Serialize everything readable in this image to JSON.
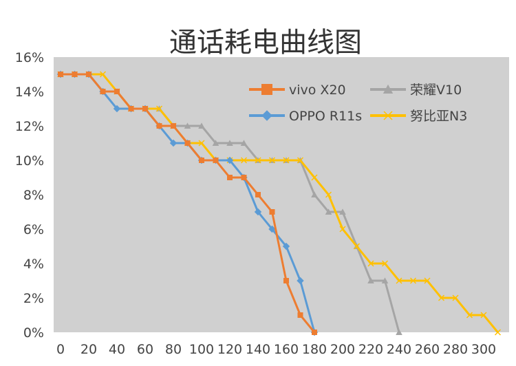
{
  "chart_data": {
    "type": "line",
    "title": "通话耗电曲线图",
    "xlabel": "",
    "ylabel": "",
    "xlim": [
      0,
      310
    ],
    "ylim": [
      0,
      16
    ],
    "x_ticks": [
      "0",
      "20",
      "40",
      "60",
      "80",
      "100",
      "120",
      "140",
      "160",
      "180",
      "200",
      "220",
      "240",
      "260",
      "280",
      "300"
    ],
    "y_ticks": [
      "0%",
      "2%",
      "4%",
      "6%",
      "8%",
      "10%",
      "12%",
      "14%",
      "16%"
    ],
    "grid": false,
    "legend_position": "top-right",
    "plot_background": "#d0d0d0",
    "series": [
      {
        "name": "vivo X20",
        "color": "#ed7d31",
        "marker": "square",
        "x": [
          0,
          10,
          20,
          30,
          40,
          50,
          60,
          70,
          80,
          90,
          100,
          110,
          120,
          130,
          140,
          150,
          160,
          170,
          180
        ],
        "y": [
          15,
          15,
          15,
          14,
          14,
          13,
          13,
          12,
          12,
          11,
          10,
          10,
          9,
          9,
          8,
          7,
          3,
          1,
          0
        ]
      },
      {
        "name": "荣耀V10",
        "color": "#a5a5a5",
        "marker": "triangle",
        "x": [
          0,
          10,
          20,
          30,
          40,
          50,
          60,
          70,
          80,
          90,
          100,
          110,
          120,
          130,
          140,
          150,
          160,
          170,
          180,
          190,
          200,
          210,
          220,
          230,
          240
        ],
        "y": [
          15,
          15,
          15,
          14,
          14,
          13,
          13,
          13,
          12,
          12,
          12,
          11,
          11,
          11,
          10,
          10,
          10,
          10,
          8,
          7,
          7,
          5,
          3,
          3,
          0
        ]
      },
      {
        "name": "OPPO R11s",
        "color": "#5b9bd5",
        "marker": "diamond",
        "x": [
          0,
          10,
          20,
          30,
          40,
          50,
          60,
          70,
          80,
          90,
          100,
          110,
          120,
          130,
          140,
          150,
          160,
          170,
          180
        ],
        "y": [
          15,
          15,
          15,
          14,
          13,
          13,
          13,
          12,
          11,
          11,
          10,
          10,
          10,
          9,
          7,
          6,
          5,
          3,
          0
        ]
      },
      {
        "name": "努比亚N3",
        "color": "#ffc000",
        "marker": "x",
        "x": [
          0,
          10,
          20,
          30,
          40,
          50,
          60,
          70,
          80,
          90,
          100,
          110,
          120,
          130,
          140,
          150,
          160,
          170,
          180,
          190,
          200,
          210,
          220,
          230,
          240,
          250,
          260,
          270,
          280,
          290,
          300,
          310
        ],
        "y": [
          15,
          15,
          15,
          15,
          14,
          13,
          13,
          13,
          12,
          11,
          11,
          10,
          10,
          10,
          10,
          10,
          10,
          10,
          9,
          8,
          6,
          5,
          4,
          4,
          3,
          3,
          3,
          2,
          2,
          1,
          1,
          0
        ]
      }
    ]
  }
}
